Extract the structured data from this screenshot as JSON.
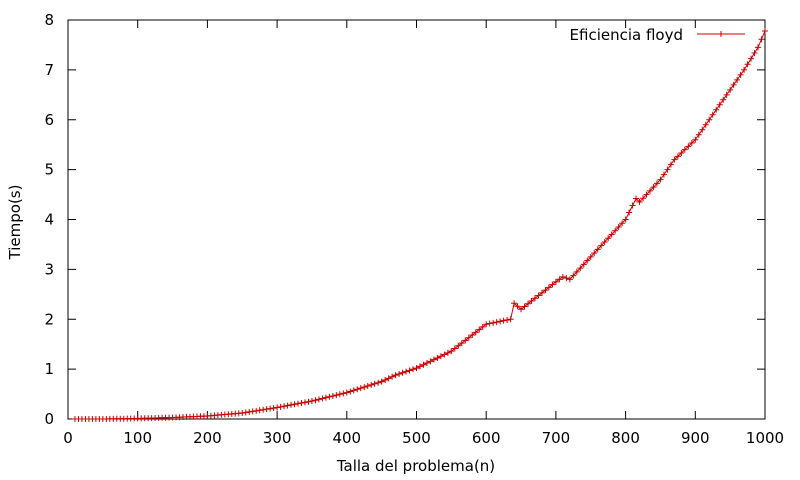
{
  "chart_data": {
    "type": "line",
    "title": "",
    "xlabel": "Talla del problema(n)",
    "ylabel": "Tiempo(s)",
    "xlim": [
      0,
      1000
    ],
    "ylim": [
      0,
      8
    ],
    "x_ticks": [
      "0",
      "100",
      "200",
      "300",
      "400",
      "500",
      "600",
      "700",
      "800",
      "900",
      "1000"
    ],
    "y_ticks": [
      "0",
      "1",
      "2",
      "3",
      "4",
      "5",
      "6",
      "7",
      "8"
    ],
    "grid": false,
    "legend_position": "top-right",
    "marker": "plus",
    "series_color": "#cc0000",
    "series": [
      {
        "name": "Eficiencia floyd",
        "color": "#cc0000",
        "points": [
          [
            10,
            0.0
          ],
          [
            50,
            0.0
          ],
          [
            100,
            0.01
          ],
          [
            150,
            0.03
          ],
          [
            200,
            0.06
          ],
          [
            250,
            0.12
          ],
          [
            300,
            0.23
          ],
          [
            350,
            0.36
          ],
          [
            400,
            0.53
          ],
          [
            450,
            0.75
          ],
          [
            470,
            0.88
          ],
          [
            500,
            1.02
          ],
          [
            550,
            1.36
          ],
          [
            600,
            1.9
          ],
          [
            635,
            2.0
          ],
          [
            640,
            2.32
          ],
          [
            650,
            2.2
          ],
          [
            700,
            2.75
          ],
          [
            710,
            2.85
          ],
          [
            720,
            2.8
          ],
          [
            750,
            3.25
          ],
          [
            800,
            4.0
          ],
          [
            815,
            4.42
          ],
          [
            820,
            4.35
          ],
          [
            850,
            4.8
          ],
          [
            870,
            5.2
          ],
          [
            900,
            5.6
          ],
          [
            950,
            6.6
          ],
          [
            970,
            7.0
          ],
          [
            990,
            7.45
          ],
          [
            1000,
            7.78
          ]
        ]
      }
    ]
  }
}
